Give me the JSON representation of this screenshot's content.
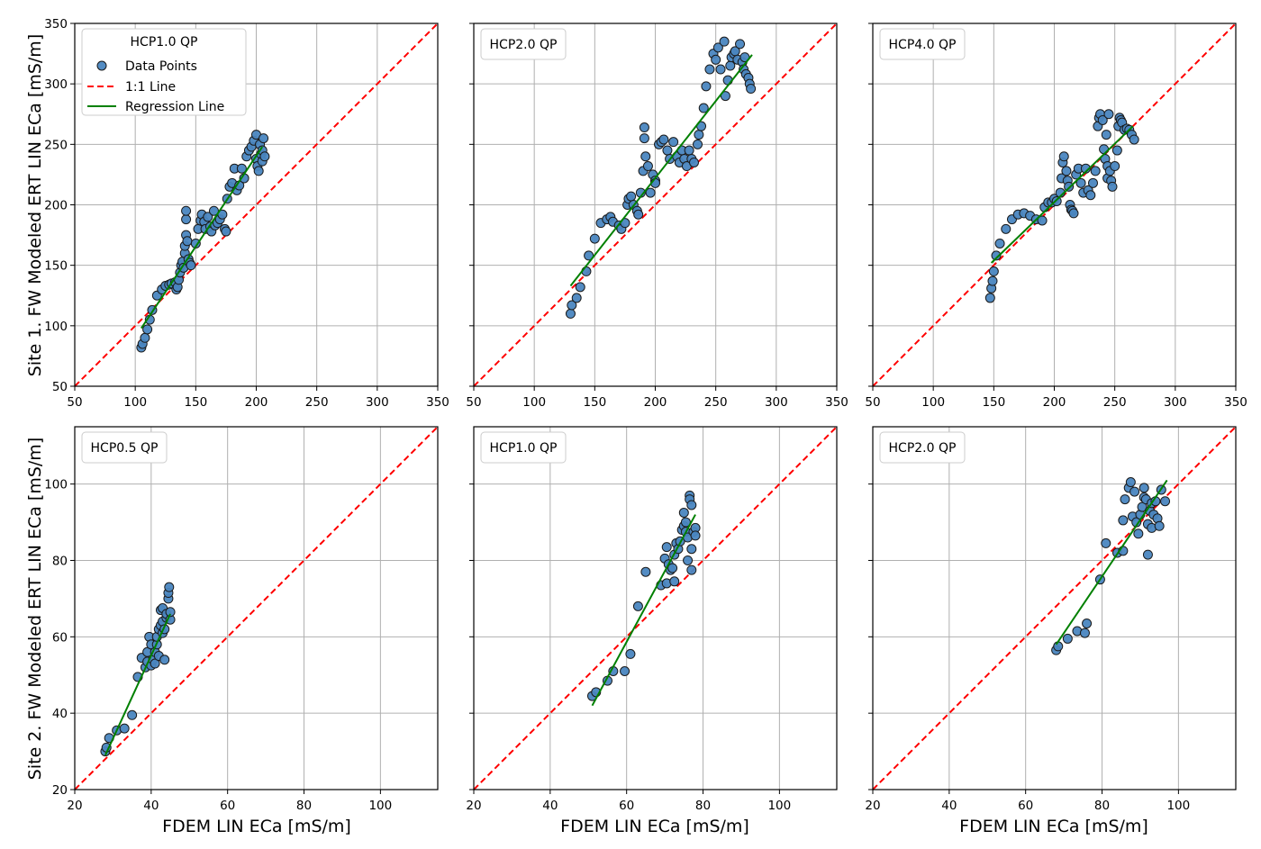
{
  "figure": {
    "ylabel_row1": "Site 1. FW Modeled ERT LIN ECa [mS/m]",
    "ylabel_row2": "Site 2. FW Modeled ERT LIN ECa [mS/m]",
    "xlabel": "FDEM LIN ECa [mS/m]"
  },
  "legend_entries": {
    "data_points": "Data Points",
    "one_to_one": "1:1 Line",
    "regression": "Regression Line"
  },
  "colors": {
    "points": "#4a86c0",
    "one_to_one": "#ff0000",
    "regression": "#008000",
    "grid": "#b0b0b0"
  },
  "chart_data": [
    {
      "type": "scatter",
      "title": "HCP1.0 QP",
      "xlim": [
        50,
        350
      ],
      "ylim": [
        50,
        350
      ],
      "xticks": [
        50,
        100,
        150,
        200,
        250,
        300,
        350
      ],
      "yticks": [
        50,
        100,
        150,
        200,
        250,
        300,
        350
      ],
      "full_legend": true,
      "regression": [
        [
          105,
          98
        ],
        [
          205,
          248
        ]
      ],
      "points": [
        [
          105,
          82
        ],
        [
          106,
          85
        ],
        [
          108,
          90
        ],
        [
          110,
          97
        ],
        [
          112,
          105
        ],
        [
          114,
          113
        ],
        [
          118,
          125
        ],
        [
          122,
          130
        ],
        [
          125,
          133
        ],
        [
          128,
          134
        ],
        [
          130,
          135
        ],
        [
          133,
          136
        ],
        [
          134,
          130
        ],
        [
          135,
          132
        ],
        [
          136,
          138
        ],
        [
          137,
          144
        ],
        [
          138,
          150
        ],
        [
          139,
          153
        ],
        [
          140,
          148
        ],
        [
          141,
          160
        ],
        [
          141,
          166
        ],
        [
          142,
          175
        ],
        [
          142,
          188
        ],
        [
          142,
          195
        ],
        [
          143,
          170
        ],
        [
          144,
          155
        ],
        [
          145,
          152
        ],
        [
          146,
          150
        ],
        [
          150,
          168
        ],
        [
          152,
          180
        ],
        [
          154,
          187
        ],
        [
          155,
          192
        ],
        [
          157,
          186
        ],
        [
          158,
          180
        ],
        [
          160,
          190
        ],
        [
          162,
          182
        ],
        [
          163,
          178
        ],
        [
          165,
          195
        ],
        [
          166,
          183
        ],
        [
          168,
          185
        ],
        [
          170,
          188
        ],
        [
          172,
          192
        ],
        [
          174,
          180
        ],
        [
          175,
          178
        ],
        [
          176,
          205
        ],
        [
          178,
          215
        ],
        [
          180,
          218
        ],
        [
          182,
          230
        ],
        [
          184,
          212
        ],
        [
          186,
          216
        ],
        [
          188,
          230
        ],
        [
          190,
          222
        ],
        [
          192,
          240
        ],
        [
          194,
          245
        ],
        [
          196,
          248
        ],
        [
          198,
          253
        ],
        [
          200,
          238
        ],
        [
          200,
          258
        ],
        [
          201,
          232
        ],
        [
          202,
          228
        ],
        [
          203,
          250
        ],
        [
          204,
          242
        ],
        [
          205,
          245
        ],
        [
          205,
          236
        ],
        [
          206,
          255
        ],
        [
          207,
          240
        ]
      ]
    },
    {
      "type": "scatter",
      "title": "HCP2.0 QP",
      "xlim": [
        50,
        350
      ],
      "ylim": [
        50,
        350
      ],
      "xticks": [
        50,
        100,
        150,
        200,
        250,
        300,
        350
      ],
      "yticks": [
        50,
        100,
        150,
        200,
        250,
        300,
        350
      ],
      "full_legend": false,
      "regression": [
        [
          130,
          133
        ],
        [
          280,
          324
        ]
      ],
      "points": [
        [
          130,
          110
        ],
        [
          131,
          117
        ],
        [
          135,
          123
        ],
        [
          138,
          132
        ],
        [
          143,
          145
        ],
        [
          145,
          158
        ],
        [
          150,
          172
        ],
        [
          155,
          185
        ],
        [
          160,
          188
        ],
        [
          163,
          190
        ],
        [
          165,
          186
        ],
        [
          170,
          183
        ],
        [
          172,
          180
        ],
        [
          175,
          185
        ],
        [
          177,
          200
        ],
        [
          178,
          205
        ],
        [
          180,
          207
        ],
        [
          182,
          200
        ],
        [
          185,
          195
        ],
        [
          186,
          192
        ],
        [
          188,
          210
        ],
        [
          190,
          228
        ],
        [
          191,
          255
        ],
        [
          191,
          264
        ],
        [
          192,
          240
        ],
        [
          194,
          232
        ],
        [
          196,
          210
        ],
        [
          198,
          225
        ],
        [
          200,
          220
        ],
        [
          200,
          218
        ],
        [
          203,
          250
        ],
        [
          205,
          252
        ],
        [
          207,
          254
        ],
        [
          210,
          245
        ],
        [
          212,
          238
        ],
        [
          215,
          252
        ],
        [
          218,
          240
        ],
        [
          220,
          235
        ],
        [
          222,
          245
        ],
        [
          224,
          238
        ],
        [
          226,
          232
        ],
        [
          228,
          245
        ],
        [
          230,
          238
        ],
        [
          232,
          235
        ],
        [
          235,
          250
        ],
        [
          236,
          258
        ],
        [
          238,
          265
        ],
        [
          240,
          280
        ],
        [
          242,
          298
        ],
        [
          245,
          312
        ],
        [
          248,
          325
        ],
        [
          250,
          320
        ],
        [
          252,
          330
        ],
        [
          254,
          312
        ],
        [
          257,
          335
        ],
        [
          258,
          290
        ],
        [
          260,
          303
        ],
        [
          262,
          315
        ],
        [
          263,
          322
        ],
        [
          265,
          325
        ],
        [
          266,
          327
        ],
        [
          268,
          320
        ],
        [
          270,
          333
        ],
        [
          272,
          318
        ],
        [
          273,
          312
        ],
        [
          274,
          322
        ],
        [
          275,
          308
        ],
        [
          277,
          305
        ],
        [
          278,
          300
        ],
        [
          279,
          296
        ]
      ]
    },
    {
      "type": "scatter",
      "title": "HCP4.0 QP",
      "xlim": [
        50,
        350
      ],
      "ylim": [
        50,
        350
      ],
      "xticks": [
        50,
        100,
        150,
        200,
        250,
        300,
        350
      ],
      "yticks": [
        50,
        100,
        150,
        200,
        250,
        300,
        350
      ],
      "full_legend": false,
      "regression": [
        [
          148,
          152
        ],
        [
          265,
          265
        ]
      ],
      "points": [
        [
          147,
          123
        ],
        [
          148,
          131
        ],
        [
          149,
          137
        ],
        [
          150,
          145
        ],
        [
          152,
          158
        ],
        [
          155,
          168
        ],
        [
          160,
          180
        ],
        [
          165,
          188
        ],
        [
          170,
          192
        ],
        [
          175,
          193
        ],
        [
          180,
          191
        ],
        [
          185,
          188
        ],
        [
          190,
          187
        ],
        [
          192,
          198
        ],
        [
          195,
          202
        ],
        [
          198,
          202
        ],
        [
          200,
          205
        ],
        [
          202,
          203
        ],
        [
          205,
          210
        ],
        [
          206,
          222
        ],
        [
          207,
          235
        ],
        [
          208,
          240
        ],
        [
          210,
          228
        ],
        [
          211,
          220
        ],
        [
          212,
          215
        ],
        [
          213,
          200
        ],
        [
          214,
          196
        ],
        [
          215,
          195
        ],
        [
          216,
          193
        ],
        [
          218,
          225
        ],
        [
          220,
          230
        ],
        [
          222,
          218
        ],
        [
          224,
          210
        ],
        [
          226,
          230
        ],
        [
          228,
          212
        ],
        [
          230,
          208
        ],
        [
          232,
          218
        ],
        [
          234,
          228
        ],
        [
          236,
          265
        ],
        [
          237,
          272
        ],
        [
          238,
          275
        ],
        [
          240,
          270
        ],
        [
          241,
          246
        ],
        [
          242,
          238
        ],
        [
          243,
          258
        ],
        [
          244,
          232
        ],
        [
          244,
          222
        ],
        [
          245,
          275
        ],
        [
          246,
          228
        ],
        [
          247,
          220
        ],
        [
          248,
          215
        ],
        [
          250,
          232
        ],
        [
          252,
          245
        ],
        [
          253,
          265
        ],
        [
          254,
          272
        ],
        [
          255,
          270
        ],
        [
          256,
          268
        ],
        [
          258,
          262
        ],
        [
          260,
          263
        ],
        [
          262,
          262
        ],
        [
          264,
          258
        ],
        [
          266,
          254
        ]
      ]
    },
    {
      "type": "scatter",
      "title": "HCP0.5 QP",
      "xlim": [
        20,
        115
      ],
      "ylim": [
        20,
        115
      ],
      "xticks": [
        20,
        40,
        60,
        80,
        100
      ],
      "yticks": [
        20,
        40,
        60,
        80,
        100
      ],
      "full_legend": false,
      "regression": [
        [
          28,
          29
        ],
        [
          45,
          66
        ]
      ],
      "points": [
        [
          28,
          30
        ],
        [
          28.3,
          31
        ],
        [
          29,
          33.5
        ],
        [
          31,
          35.5
        ],
        [
          33,
          36
        ],
        [
          35,
          39.5
        ],
        [
          36.5,
          49.5
        ],
        [
          37.5,
          54.5
        ],
        [
          38.5,
          52
        ],
        [
          39,
          53.5
        ],
        [
          39,
          56
        ],
        [
          39.5,
          60
        ],
        [
          40,
          52.5
        ],
        [
          40,
          58
        ],
        [
          40.5,
          54
        ],
        [
          41,
          53
        ],
        [
          41,
          56
        ],
        [
          41.5,
          58
        ],
        [
          41.5,
          60
        ],
        [
          42,
          62
        ],
        [
          42,
          55
        ],
        [
          42.5,
          63
        ],
        [
          42.5,
          67
        ],
        [
          43,
          61
        ],
        [
          43,
          64
        ],
        [
          43,
          67.5
        ],
        [
          43.5,
          54
        ],
        [
          43.5,
          62
        ],
        [
          44,
          65
        ],
        [
          44,
          66
        ],
        [
          44.5,
          70
        ],
        [
          44.5,
          71.5
        ],
        [
          44.7,
          73
        ],
        [
          45,
          64.5
        ],
        [
          45,
          66.5
        ]
      ]
    },
    {
      "type": "scatter",
      "title": "HCP1.0 QP",
      "xlim": [
        20,
        115
      ],
      "ylim": [
        20,
        115
      ],
      "xticks": [
        20,
        40,
        60,
        80,
        100
      ],
      "yticks": [
        20,
        40,
        60,
        80,
        100
      ],
      "full_legend": false,
      "regression": [
        [
          51,
          42
        ],
        [
          78,
          92
        ]
      ],
      "points": [
        [
          51,
          44.5
        ],
        [
          52,
          45.5
        ],
        [
          55,
          48.5
        ],
        [
          56.5,
          51
        ],
        [
          59.5,
          51
        ],
        [
          61,
          55.5
        ],
        [
          63,
          68
        ],
        [
          65,
          77
        ],
        [
          69,
          73.5
        ],
        [
          70,
          80.5
        ],
        [
          70.5,
          83.5
        ],
        [
          70.5,
          74
        ],
        [
          71,
          79
        ],
        [
          71.5,
          77.5
        ],
        [
          72,
          78
        ],
        [
          72.5,
          74.5
        ],
        [
          72.5,
          81.5
        ],
        [
          73,
          84.5
        ],
        [
          73.5,
          83
        ],
        [
          74,
          85
        ],
        [
          74.5,
          88
        ],
        [
          75,
          89
        ],
        [
          75,
          92.5
        ],
        [
          75.5,
          87.5
        ],
        [
          75.5,
          90
        ],
        [
          76,
          86
        ],
        [
          76,
          80
        ],
        [
          76.5,
          97
        ],
        [
          76.5,
          96
        ],
        [
          77,
          83
        ],
        [
          77,
          77.5
        ],
        [
          77,
          94.5
        ],
        [
          77.5,
          87.5
        ],
        [
          78,
          88.5
        ],
        [
          78,
          86.5
        ]
      ]
    },
    {
      "type": "scatter",
      "title": "HCP2.0 QP",
      "xlim": [
        20,
        115
      ],
      "ylim": [
        20,
        115
      ],
      "xticks": [
        20,
        40,
        60,
        80,
        100
      ],
      "yticks": [
        20,
        40,
        60,
        80,
        100
      ],
      "full_legend": false,
      "regression": [
        [
          68,
          58
        ],
        [
          97,
          101
        ]
      ],
      "points": [
        [
          68,
          56.5
        ],
        [
          68.5,
          57.5
        ],
        [
          71,
          59.5
        ],
        [
          73.5,
          61.5
        ],
        [
          75.5,
          61
        ],
        [
          76,
          63.5
        ],
        [
          79.5,
          75
        ],
        [
          81,
          84.5
        ],
        [
          84,
          82
        ],
        [
          85.5,
          82.5
        ],
        [
          85.5,
          90.5
        ],
        [
          86,
          96
        ],
        [
          87,
          99
        ],
        [
          87.5,
          100.5
        ],
        [
          88,
          91.5
        ],
        [
          88.5,
          98
        ],
        [
          89,
          90
        ],
        [
          89.5,
          87
        ],
        [
          90,
          92
        ],
        [
          90.5,
          94
        ],
        [
          91,
          96.5
        ],
        [
          91,
          99
        ],
        [
          91.5,
          96
        ],
        [
          92,
          81.5
        ],
        [
          92,
          89.5
        ],
        [
          92.5,
          93
        ],
        [
          93,
          95
        ],
        [
          93,
          88.5
        ],
        [
          93.5,
          92
        ],
        [
          94,
          95.5
        ],
        [
          94.5,
          91
        ],
        [
          95,
          89
        ],
        [
          95.5,
          98.5
        ],
        [
          96.5,
          95.5
        ]
      ]
    }
  ]
}
